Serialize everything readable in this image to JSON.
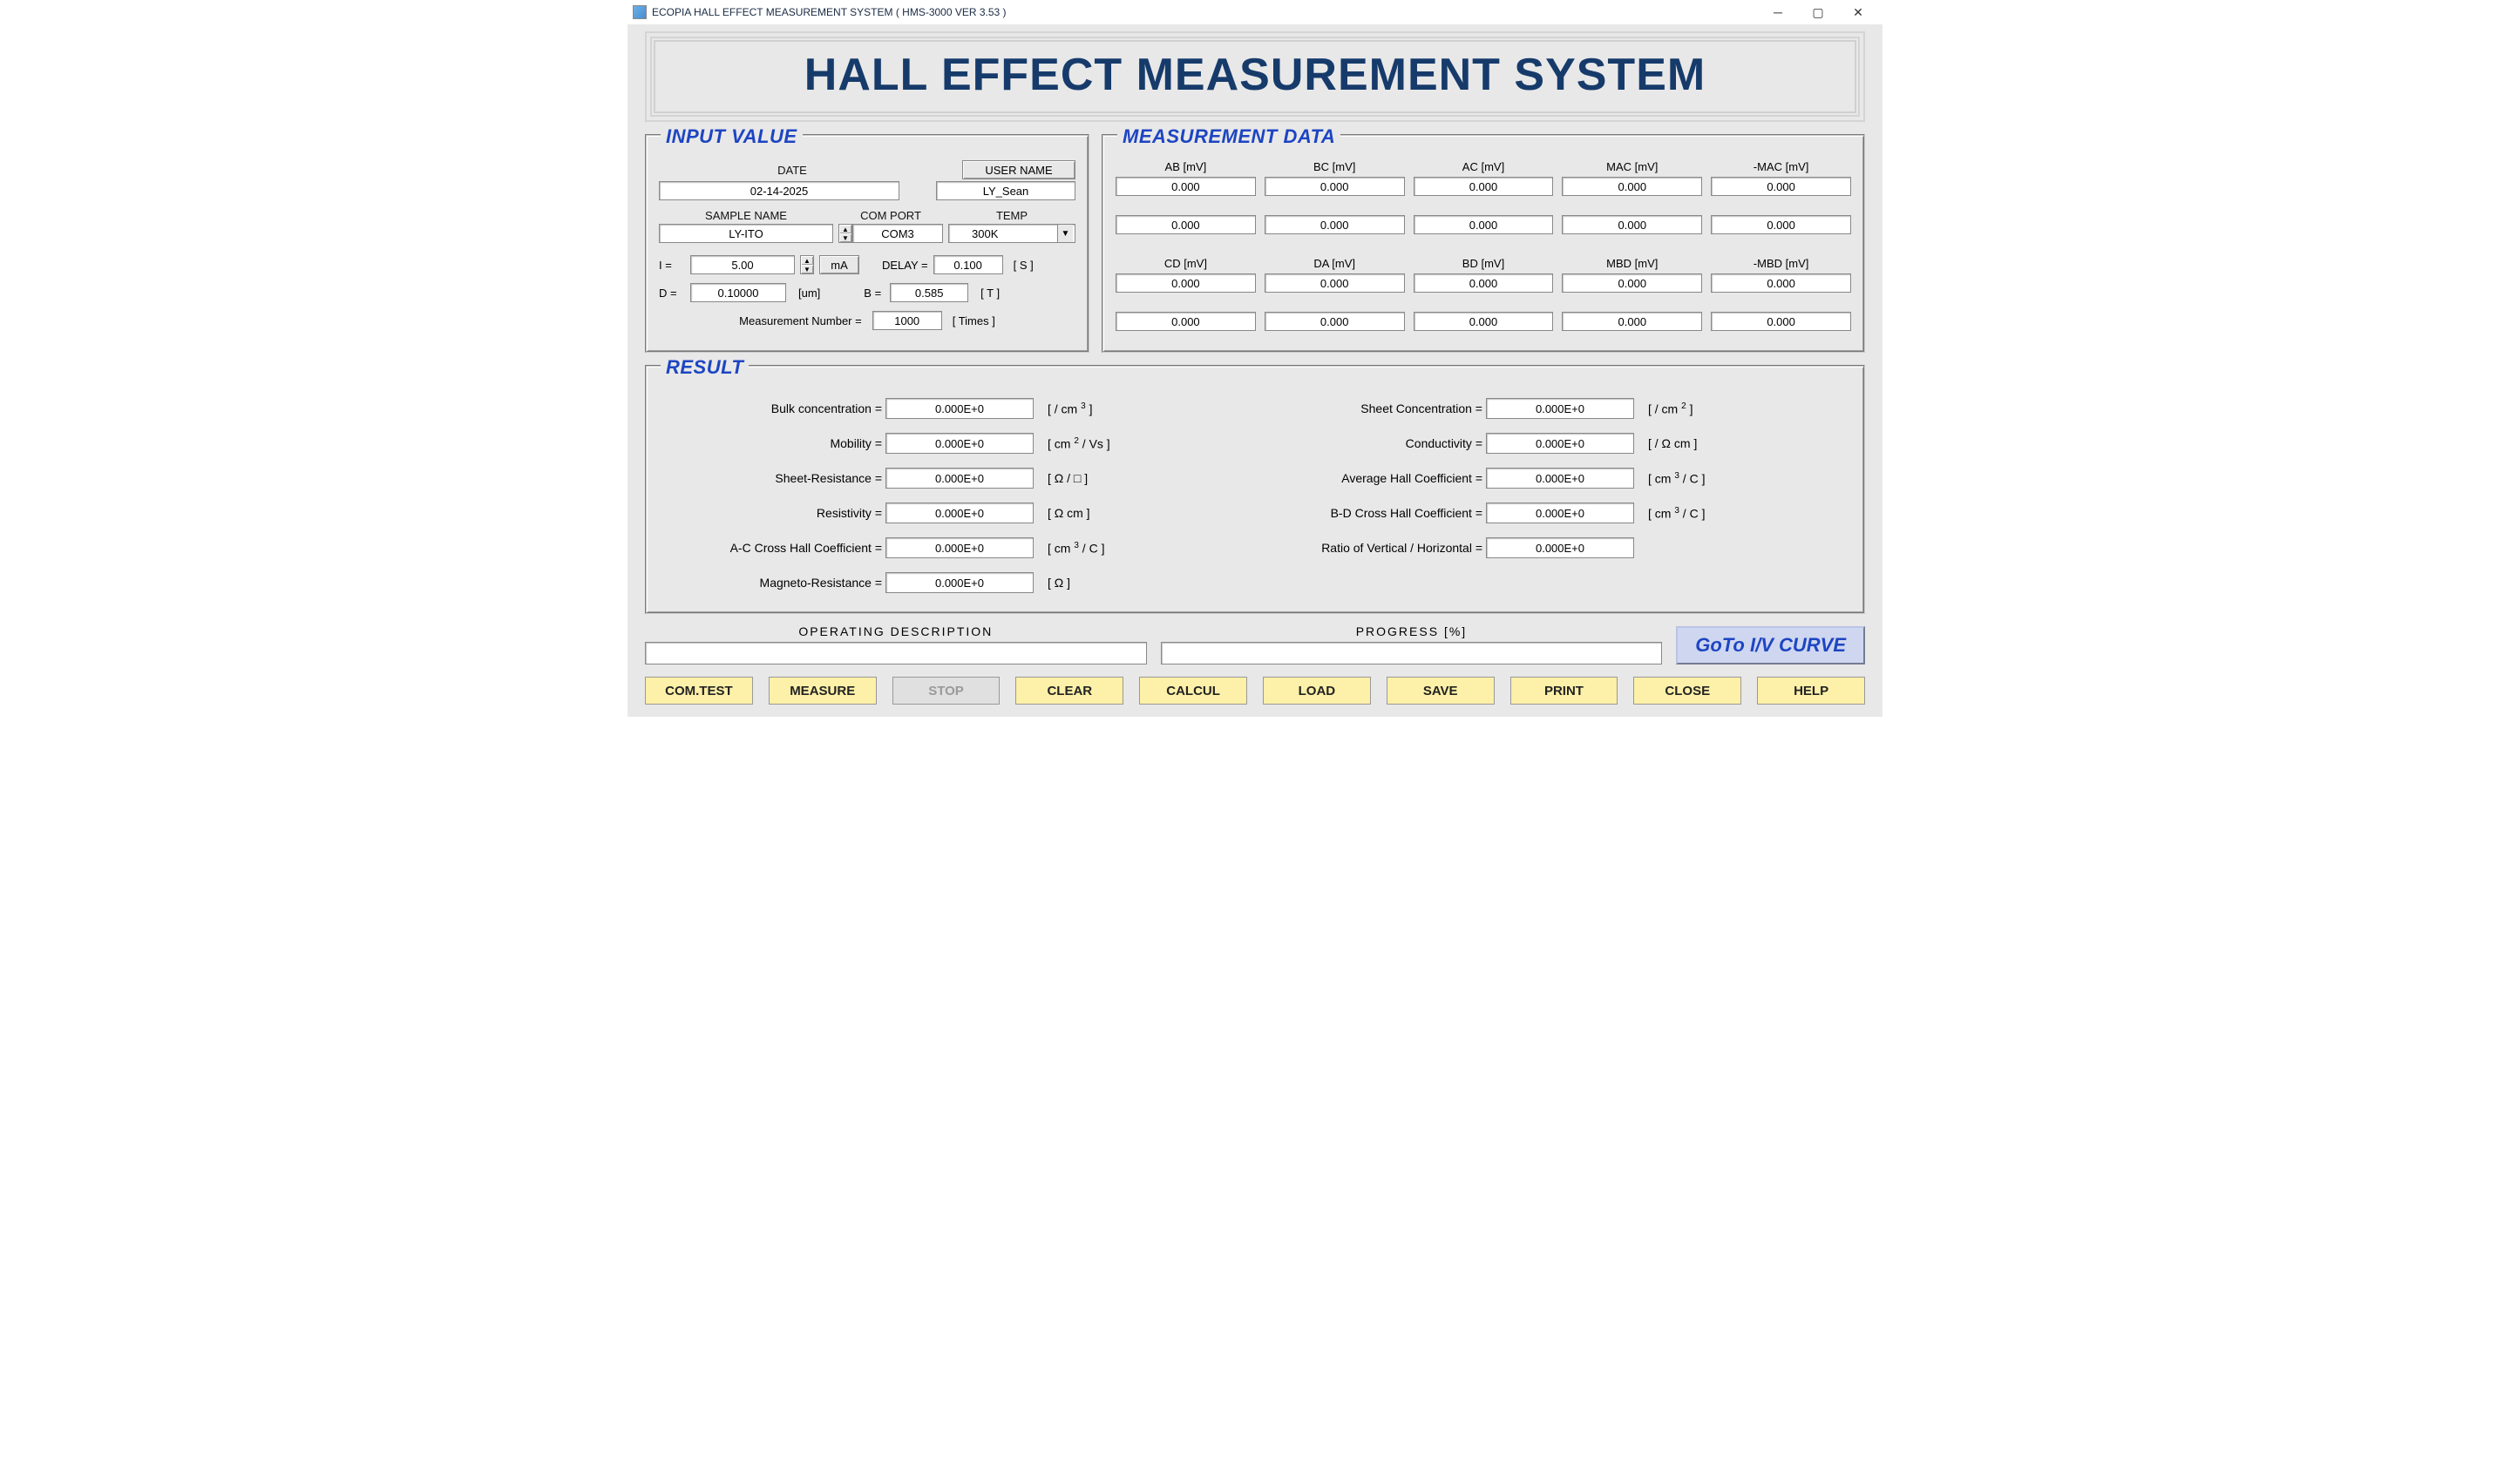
{
  "titlebar": {
    "title": "ECOPIA HALL EFFECT MEASUREMENT SYSTEM ( HMS-3000  VER 3.53 )"
  },
  "banner": "HALL EFFECT MEASUREMENT SYSTEM",
  "input": {
    "group_title": "INPUT VALUE",
    "date_label": "DATE",
    "date_value": "02-14-2025",
    "user_label": "USER NAME",
    "user_value": "LY_Sean",
    "sample_label": "SAMPLE NAME",
    "sample_value": "LY-ITO",
    "comport_label": "COM PORT",
    "comport_value": "COM3",
    "temp_label": "TEMP",
    "temp_value": "300K",
    "I_label": "I  =",
    "I_value": "5.00",
    "I_unit": "mA",
    "delay_label": "DELAY  =",
    "delay_value": "0.100",
    "delay_unit": "[ S ]",
    "D_label": "D =",
    "D_value": "0.10000",
    "D_unit": "[um]",
    "B_label": "B  =",
    "B_value": "0.585",
    "B_unit": "[ T ]",
    "measnum_label": "Measurement Number  =",
    "measnum_value": "1000",
    "measnum_unit": "[ Times ]"
  },
  "measurement": {
    "group_title": "MEASUREMENT   DATA",
    "headers1": [
      "AB [mV]",
      "BC [mV]",
      "AC [mV]",
      "MAC [mV]",
      "-MAC [mV]"
    ],
    "row1": [
      "0.000",
      "0.000",
      "0.000",
      "0.000",
      "0.000"
    ],
    "row2": [
      "0.000",
      "0.000",
      "0.000",
      "0.000",
      "0.000"
    ],
    "headers2": [
      "CD [mV]",
      "DA [mV]",
      "BD [mV]",
      "MBD [mV]",
      "-MBD [mV]"
    ],
    "row3": [
      "0.000",
      "0.000",
      "0.000",
      "0.000",
      "0.000"
    ],
    "row4": [
      "0.000",
      "0.000",
      "0.000",
      "0.000",
      "0.000"
    ]
  },
  "result": {
    "group_title": "RESULT",
    "left": [
      {
        "label": "Bulk concentration =",
        "value": "0.000E+0",
        "unit": "[ / cm <sup>3</sup> ]"
      },
      {
        "label": "Mobility =",
        "value": "0.000E+0",
        "unit": "[ cm <sup>2</sup> / Vs ]"
      },
      {
        "label": "Sheet-Resistance =",
        "value": "0.000E+0",
        "unit": "[ Ω  / □ ]"
      },
      {
        "label": "Resistivity =",
        "value": "0.000E+0",
        "unit": "[ Ω cm ]"
      },
      {
        "label": "A-C Cross Hall Coefficient =",
        "value": "0.000E+0",
        "unit": "[ cm <sup>3</sup> / C ]"
      },
      {
        "label": "Magneto-Resistance =",
        "value": "0.000E+0",
        "unit": "[ Ω ]"
      }
    ],
    "right": [
      {
        "label": "Sheet Concentration =",
        "value": "0.000E+0",
        "unit": "[ / cm <sup>2</sup> ]"
      },
      {
        "label": "Conductivity =",
        "value": "0.000E+0",
        "unit": "[ /  Ω cm ]"
      },
      {
        "label": "Average Hall Coefficient =",
        "value": "0.000E+0",
        "unit": "[ cm <sup>3</sup> / C ]"
      },
      {
        "label": "B-D Cross Hall Coefficient =",
        "value": "0.000E+0",
        "unit": "[ cm <sup>3</sup> / C ]"
      },
      {
        "label": "Ratio of Vertical / Horizontal =",
        "value": "0.000E+0",
        "unit": ""
      }
    ]
  },
  "bottom": {
    "opdesc_label": "OPERATING    DESCRIPTION",
    "progress_label": "PROGRESS [%]",
    "goto": "GoTo I/V CURVE"
  },
  "actions": [
    "COM.TEST",
    "MEASURE",
    "STOP",
    "CLEAR",
    "CALCUL",
    "LOAD",
    "SAVE",
    "PRINT",
    "CLOSE",
    "HELP"
  ]
}
